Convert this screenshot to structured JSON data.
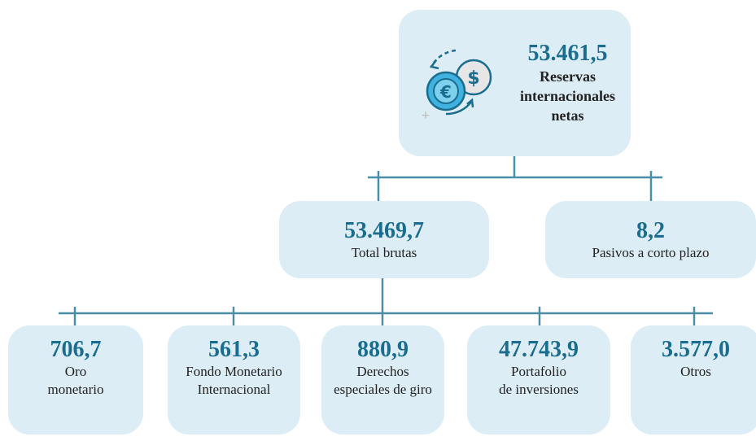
{
  "nodes": [
    {
      "value": "53.461,5",
      "label": [
        "Reservas",
        "internacionales",
        "netas"
      ]
    },
    {
      "value": "53.469,7",
      "label": [
        "Total brutas"
      ]
    },
    {
      "value": "8,2",
      "label": [
        "Pasivos a corto plazo"
      ]
    },
    {
      "value": "706,7",
      "label": [
        "Oro",
        "monetario"
      ]
    },
    {
      "value": "561,3",
      "label": [
        "Fondo Monetario",
        "Internacional"
      ]
    },
    {
      "value": "880,9",
      "label": [
        "Derechos",
        "especiales de giro"
      ]
    },
    {
      "value": "47.743,9",
      "label": [
        "Portafolio",
        "de inversiones"
      ]
    },
    {
      "value": "3.577,0",
      "label": [
        "Otros"
      ]
    }
  ]
}
